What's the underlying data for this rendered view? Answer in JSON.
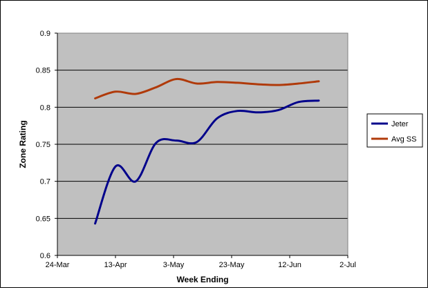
{
  "chart_data": {
    "type": "line",
    "title": "",
    "xlabel": "Week Ending",
    "ylabel": "Zone Rating",
    "xlim": [
      "2003-03-24",
      "2003-07-02"
    ],
    "ylim": [
      0.6,
      0.9
    ],
    "x_ticks": [
      "24-Mar",
      "13-Apr",
      "3-May",
      "23-May",
      "12-Jun",
      "2-Jul"
    ],
    "y_ticks": [
      "0.6",
      "0.65",
      "0.7",
      "0.75",
      "0.8",
      "0.85",
      "0.9"
    ],
    "grid": "horizontal",
    "plot_background": "#c0c0c0",
    "legend_position": "right",
    "series": [
      {
        "name": "Jeter",
        "color": "#00008b",
        "x": [
          "2003-04-06",
          "2003-04-13",
          "2003-04-20",
          "2003-04-27",
          "2003-05-04",
          "2003-05-11",
          "2003-05-18",
          "2003-05-25",
          "2003-06-01",
          "2003-06-08",
          "2003-06-15",
          "2003-06-22"
        ],
        "values": [
          0.643,
          0.72,
          0.7,
          0.752,
          0.755,
          0.753,
          0.785,
          0.795,
          0.793,
          0.796,
          0.807,
          0.809
        ]
      },
      {
        "name": "Avg SS",
        "color": "#b03a0a",
        "x": [
          "2003-04-06",
          "2003-04-13",
          "2003-04-20",
          "2003-04-27",
          "2003-05-04",
          "2003-05-11",
          "2003-05-18",
          "2003-05-25",
          "2003-06-01",
          "2003-06-08",
          "2003-06-15",
          "2003-06-22"
        ],
        "values": [
          0.812,
          0.821,
          0.818,
          0.827,
          0.838,
          0.832,
          0.834,
          0.833,
          0.831,
          0.83,
          0.832,
          0.835
        ]
      }
    ]
  }
}
